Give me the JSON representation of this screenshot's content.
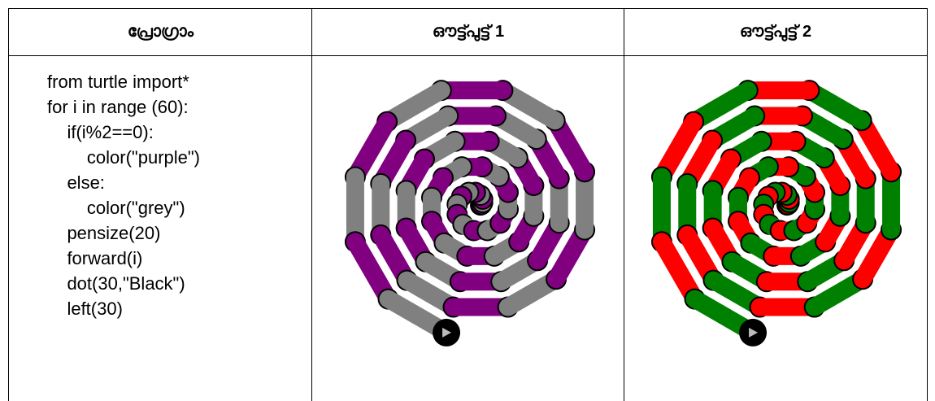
{
  "table": {
    "header": [
      "പ്രോഗ്രാം",
      "ഔട്ട്പുട്ട് 1",
      "ഔട്ട്പുട്ട് 2"
    ],
    "program": [
      "from turtle import*",
      "for i in range (60):",
      "    if(i%2==0):",
      "        color(\"purple\")",
      "    else:",
      "        color(\"grey\")",
      "    pensize(20)",
      "    forward(i)",
      "    dot(30,\"Black\")",
      "    left(30)"
    ]
  }
}
